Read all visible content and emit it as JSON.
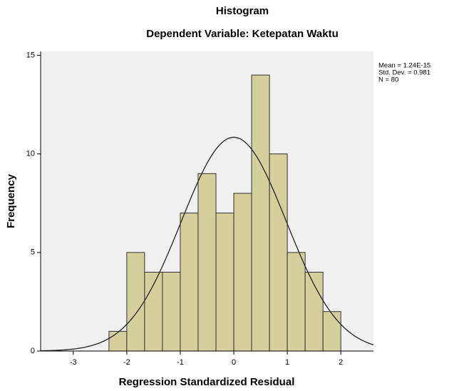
{
  "chart_data": {
    "type": "histogram",
    "title": "Histogram",
    "subtitle": "Dependent Variable: Ketepatan Waktu",
    "x_label": "Regression Standardized Residual",
    "y_label": "Frequency",
    "bins": [
      -2.333,
      -2,
      -1.667,
      -1.333,
      -1,
      -0.667,
      -0.333,
      0,
      0.333,
      0.667,
      1,
      1.333,
      1.667,
      2
    ],
    "values": [
      1,
      5,
      4,
      4,
      7,
      9,
      7,
      8,
      14,
      10,
      5,
      4,
      2
    ],
    "color": "#d4cf9c",
    "xlim": [
      -3.61,
      2.61
    ],
    "xticks": [
      -3,
      -2,
      -1,
      0,
      1,
      2
    ],
    "ylim": [
      0,
      15.2
    ],
    "yticks": [
      0,
      5,
      10,
      15
    ],
    "stats": [
      {
        "value": 1.24e-15,
        "label": "Mean = 1.24E-15"
      },
      {
        "value": 0.981,
        "label": "Std. Dev. = 0.981"
      },
      {
        "value": 80,
        "label": "N = 80"
      }
    ],
    "normal_curve": true
  }
}
